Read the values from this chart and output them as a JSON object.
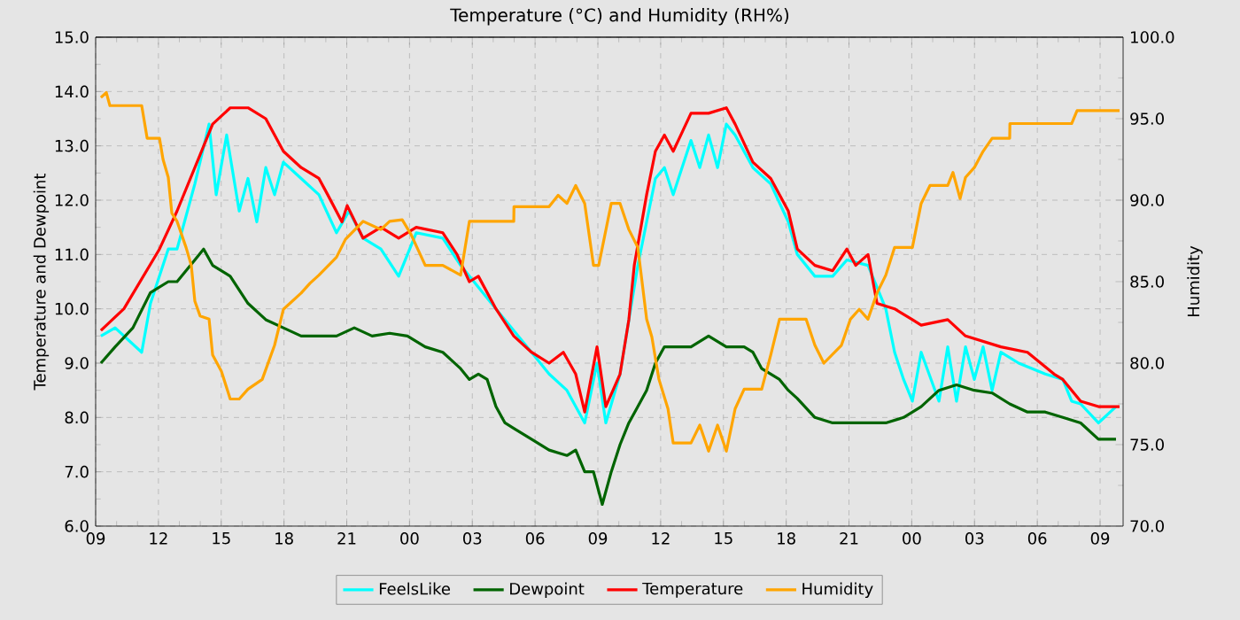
{
  "chart_data": {
    "type": "line",
    "title": "Temperature (°C) and Humidity (RH%)",
    "ylabel": "Temperature and Dewpoint",
    "y2label": "Humidity",
    "xlim": [
      9,
      58.1
    ],
    "ylim": [
      6,
      15
    ],
    "y2lim": [
      70,
      100
    ],
    "xticks": [
      {
        "value": 9,
        "label": "09"
      },
      {
        "value": 12,
        "label": "12"
      },
      {
        "value": 15,
        "label": "15"
      },
      {
        "value": 18,
        "label": "18"
      },
      {
        "value": 21,
        "label": "21"
      },
      {
        "value": 24,
        "label": "00"
      },
      {
        "value": 27,
        "label": "03"
      },
      {
        "value": 30,
        "label": "06"
      },
      {
        "value": 33,
        "label": "09"
      },
      {
        "value": 36,
        "label": "12"
      },
      {
        "value": 39,
        "label": "15"
      },
      {
        "value": 42,
        "label": "18"
      },
      {
        "value": 45,
        "label": "21"
      },
      {
        "value": 48,
        "label": "00"
      },
      {
        "value": 51,
        "label": "03"
      },
      {
        "value": 54,
        "label": "06"
      },
      {
        "value": 57,
        "label": "09"
      }
    ],
    "yticks": [
      {
        "value": 6,
        "label": "6.0"
      },
      {
        "value": 7,
        "label": "7.0"
      },
      {
        "value": 8,
        "label": "8.0"
      },
      {
        "value": 9,
        "label": "9.0"
      },
      {
        "value": 10,
        "label": "10.0"
      },
      {
        "value": 11,
        "label": "11.0"
      },
      {
        "value": 12,
        "label": "12.0"
      },
      {
        "value": 13,
        "label": "13.0"
      },
      {
        "value": 14,
        "label": "14.0"
      },
      {
        "value": 15,
        "label": "15.0"
      }
    ],
    "y2ticks": [
      {
        "value": 70,
        "label": "70.0"
      },
      {
        "value": 75,
        "label": "75.0"
      },
      {
        "value": 80,
        "label": "80.0"
      },
      {
        "value": 85,
        "label": "85.0"
      },
      {
        "value": 90,
        "label": "90.0"
      },
      {
        "value": 95,
        "label": "95.0"
      },
      {
        "value": 100,
        "label": "100.0"
      }
    ],
    "grid": true,
    "legend": "bottom",
    "marker": "none",
    "line_style": "solid",
    "series": [
      {
        "name": "FeelsLike",
        "color": "#00ffff",
        "x": [
          9.25,
          9.93,
          11.2,
          11.62,
          12.47,
          12.89,
          13.74,
          14.42,
          14.76,
          15.26,
          15.86,
          16.28,
          16.7,
          17.13,
          17.55,
          17.97,
          18.82,
          19.67,
          20.51,
          21.11,
          21.78,
          22.63,
          23.48,
          24.32,
          25.59,
          26.44,
          28.13,
          29.83,
          30.67,
          31.52,
          32.37,
          32.96,
          33.38,
          34.06,
          34.91,
          35.33,
          35.75,
          36.18,
          36.6,
          37.45,
          37.87,
          38.29,
          38.72,
          39.14,
          39.56,
          40.41,
          41.26,
          42.1,
          42.53,
          43.37,
          44.22,
          44.9,
          45.91,
          46.76,
          47.18,
          47.61,
          48.03,
          48.45,
          49.3,
          49.72,
          50.14,
          50.57,
          50.99,
          51.41,
          51.84,
          52.26,
          53.11,
          54.38,
          55.22,
          55.64,
          56.07,
          56.92,
          57.76
        ],
        "values": [
          9.5,
          9.65,
          9.2,
          10.1,
          11.1,
          11.1,
          12.3,
          13.4,
          12.1,
          13.2,
          11.8,
          12.4,
          11.6,
          12.6,
          12.1,
          12.7,
          12.4,
          12.1,
          11.4,
          11.8,
          11.3,
          11.1,
          10.6,
          11.4,
          11.3,
          10.8,
          10.0,
          9.2,
          8.8,
          8.5,
          7.9,
          9.0,
          7.9,
          8.8,
          10.8,
          11.6,
          12.4,
          12.6,
          12.1,
          13.1,
          12.6,
          13.2,
          12.6,
          13.4,
          13.2,
          12.6,
          12.3,
          11.6,
          11.0,
          10.6,
          10.6,
          10.9,
          10.8,
          10.0,
          9.2,
          8.7,
          8.3,
          9.2,
          8.3,
          9.3,
          8.3,
          9.3,
          8.7,
          9.3,
          8.5,
          9.2,
          9.0,
          8.8,
          8.7,
          8.3,
          8.25,
          7.9,
          8.2
        ]
      },
      {
        "name": "Dewpoint",
        "color": "#006400",
        "x": [
          9.25,
          9.93,
          10.78,
          11.62,
          12.47,
          12.89,
          13.74,
          14.16,
          14.59,
          15.43,
          16.28,
          17.13,
          17.97,
          18.82,
          19.67,
          20.51,
          21.36,
          22.21,
          23.05,
          23.9,
          24.75,
          25.59,
          26.44,
          26.86,
          27.29,
          27.71,
          28.13,
          28.56,
          28.98,
          29.83,
          30.67,
          31.52,
          31.94,
          32.37,
          32.79,
          33.21,
          33.64,
          34.06,
          34.48,
          34.91,
          35.33,
          35.75,
          36.18,
          36.6,
          37.45,
          38.29,
          39.14,
          39.99,
          40.41,
          40.83,
          41.68,
          42.1,
          42.53,
          43.37,
          44.22,
          45.07,
          45.91,
          46.76,
          47.61,
          48.45,
          49.3,
          50.14,
          50.99,
          51.84,
          52.68,
          53.53,
          54.38,
          55.22,
          56.07,
          56.92,
          57.76
        ],
        "values": [
          9.0,
          9.3,
          9.65,
          10.3,
          10.5,
          10.5,
          10.9,
          11.1,
          10.8,
          10.6,
          10.1,
          9.8,
          9.65,
          9.5,
          9.5,
          9.5,
          9.65,
          9.5,
          9.55,
          9.5,
          9.3,
          9.2,
          8.9,
          8.7,
          8.8,
          8.7,
          8.2,
          7.9,
          7.8,
          7.6,
          7.4,
          7.3,
          7.4,
          7.0,
          7.0,
          6.4,
          7.0,
          7.5,
          7.9,
          8.2,
          8.5,
          9.0,
          9.3,
          9.3,
          9.3,
          9.5,
          9.3,
          9.3,
          9.2,
          8.9,
          8.7,
          8.5,
          8.35,
          8.0,
          7.9,
          7.9,
          7.9,
          7.9,
          8.0,
          8.2,
          8.5,
          8.6,
          8.5,
          8.45,
          8.25,
          8.1,
          8.1,
          8.0,
          7.9,
          7.6,
          7.6
        ]
      },
      {
        "name": "Temperature",
        "color": "#ff0000",
        "x": [
          9.25,
          10.35,
          12.05,
          12.89,
          13.74,
          14.59,
          15.43,
          16.28,
          17.13,
          17.97,
          18.82,
          19.67,
          20.09,
          20.77,
          21.02,
          21.78,
          22.63,
          23.48,
          24.32,
          25.59,
          26.27,
          26.86,
          27.29,
          28.13,
          28.98,
          29.83,
          30.67,
          31.35,
          31.94,
          32.37,
          32.96,
          33.38,
          34.06,
          34.48,
          34.74,
          35.33,
          35.75,
          36.18,
          36.6,
          37.45,
          38.29,
          39.14,
          39.56,
          40.41,
          41.26,
          42.1,
          42.53,
          43.37,
          44.22,
          44.9,
          45.32,
          45.91,
          46.34,
          47.18,
          48.03,
          48.45,
          49.72,
          50.57,
          52.26,
          53.53,
          54.8,
          55.22,
          56.07,
          56.92,
          57.93
        ],
        "values": [
          9.6,
          10.0,
          11.1,
          11.8,
          12.6,
          13.4,
          13.7,
          13.7,
          13.5,
          12.9,
          12.6,
          12.4,
          12.1,
          11.6,
          11.9,
          11.3,
          11.5,
          11.3,
          11.5,
          11.4,
          11.0,
          10.5,
          10.6,
          10.0,
          9.5,
          9.2,
          9.0,
          9.2,
          8.8,
          8.1,
          9.3,
          8.2,
          8.8,
          9.8,
          10.8,
          12.1,
          12.9,
          13.2,
          12.9,
          13.6,
          13.6,
          13.7,
          13.4,
          12.7,
          12.4,
          11.8,
          11.1,
          10.8,
          10.7,
          11.1,
          10.8,
          11.0,
          10.1,
          10.0,
          9.8,
          9.7,
          9.8,
          9.5,
          9.3,
          9.2,
          8.8,
          8.7,
          8.3,
          8.2,
          8.2
        ]
      },
      {
        "name": "Humidity",
        "color": "#ffa500",
        "axis": "y2",
        "x": [
          9.25,
          9.51,
          9.68,
          11.2,
          11.46,
          12.05,
          12.22,
          12.47,
          12.64,
          12.89,
          13.32,
          13.57,
          13.74,
          13.99,
          14.42,
          14.59,
          15.01,
          15.43,
          15.86,
          16.28,
          16.96,
          17.55,
          17.97,
          18.82,
          19.24,
          19.67,
          20.51,
          20.94,
          21.78,
          22.63,
          23.05,
          23.65,
          24.07,
          24.75,
          25.59,
          26.44,
          26.86,
          28.98,
          28.99,
          30.67,
          31.1,
          31.52,
          31.94,
          32.37,
          32.79,
          33.04,
          33.64,
          34.06,
          34.48,
          34.91,
          35.33,
          35.58,
          35.92,
          36.35,
          36.6,
          37.45,
          37.87,
          38.29,
          38.72,
          39.14,
          39.56,
          39.99,
          40.83,
          41.26,
          41.68,
          42.1,
          42.95,
          43.37,
          43.8,
          44.64,
          45.07,
          45.49,
          45.91,
          46.34,
          46.76,
          47.18,
          48.03,
          48.45,
          48.87,
          49.72,
          49.97,
          50.31,
          50.57,
          50.99,
          51.41,
          51.84,
          52.68,
          52.69,
          55.64,
          55.9,
          57.93
        ],
        "values": [
          96.3,
          96.6,
          95.8,
          95.8,
          93.8,
          93.8,
          92.5,
          91.4,
          89.2,
          88.7,
          87.1,
          86.0,
          83.8,
          82.9,
          82.7,
          80.5,
          79.5,
          77.8,
          77.8,
          78.4,
          79.0,
          81.1,
          83.3,
          84.3,
          84.9,
          85.4,
          86.5,
          87.6,
          88.7,
          88.2,
          88.7,
          88.8,
          87.9,
          86.0,
          86.0,
          85.4,
          88.7,
          88.7,
          89.6,
          89.6,
          90.3,
          89.8,
          90.9,
          89.8,
          86.0,
          86.0,
          89.8,
          89.8,
          88.2,
          87.1,
          82.7,
          81.6,
          79.0,
          77.2,
          75.1,
          75.1,
          76.2,
          74.6,
          76.2,
          74.6,
          77.2,
          78.4,
          78.4,
          80.5,
          82.7,
          82.7,
          82.7,
          81.1,
          80.0,
          81.1,
          82.7,
          83.3,
          82.7,
          84.3,
          85.4,
          87.1,
          87.1,
          89.8,
          90.9,
          90.9,
          91.7,
          90.1,
          91.4,
          92.0,
          93.0,
          93.8,
          93.8,
          94.7,
          94.7,
          95.5,
          95.5
        ]
      }
    ]
  }
}
